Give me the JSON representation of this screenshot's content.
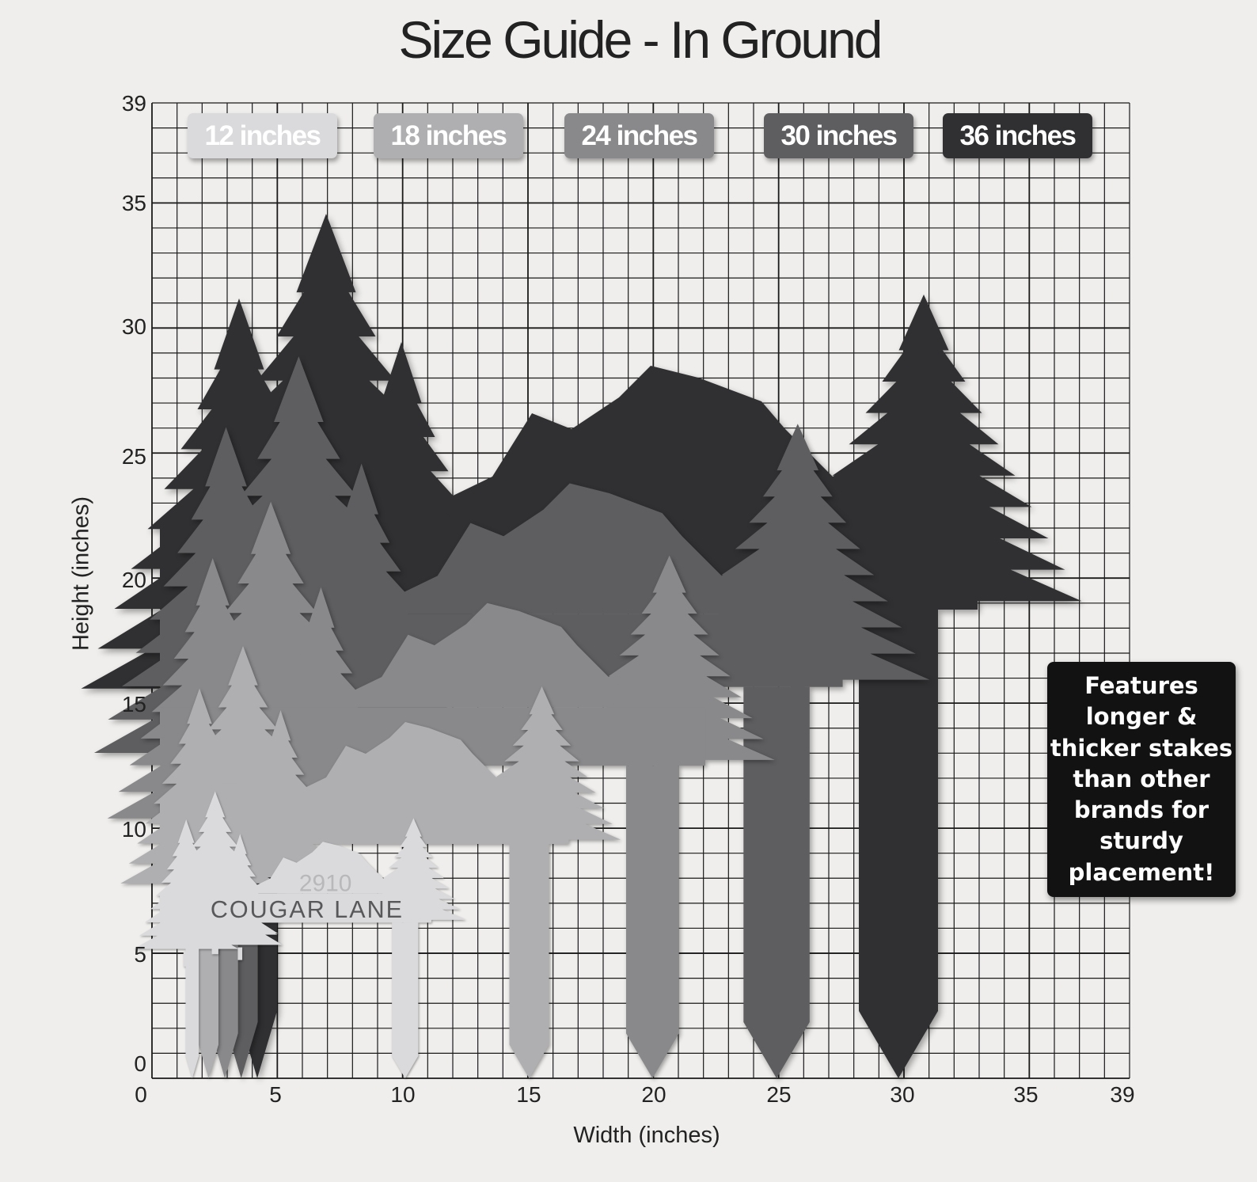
{
  "title": "Size Guide - In Ground",
  "axes": {
    "xlabel": "Width (inches)",
    "ylabel": "Height (inches)",
    "x_ticks": [
      "0",
      "5",
      "10",
      "15",
      "20",
      "25",
      "30",
      "35",
      "39"
    ],
    "y_ticks": [
      "0",
      "5",
      "10",
      "15",
      "20",
      "25",
      "30",
      "35",
      "39"
    ],
    "range": [
      0,
      39
    ],
    "grid": true
  },
  "sizes": [
    {
      "label": "12 inches",
      "color": "#dadadc"
    },
    {
      "label": "18 inches",
      "color": "#afafb1"
    },
    {
      "label": "24 inches",
      "color": "#89898b"
    },
    {
      "label": "30 inches",
      "color": "#5e5e60"
    },
    {
      "label": "36 inches",
      "color": "#303032"
    }
  ],
  "sign": {
    "street": "COUGAR LANE",
    "number": "2910"
  },
  "callout": {
    "lines": [
      "Features",
      "longer &",
      "thicker stakes",
      "than other",
      "brands for",
      "sturdy",
      "placement!"
    ]
  }
}
